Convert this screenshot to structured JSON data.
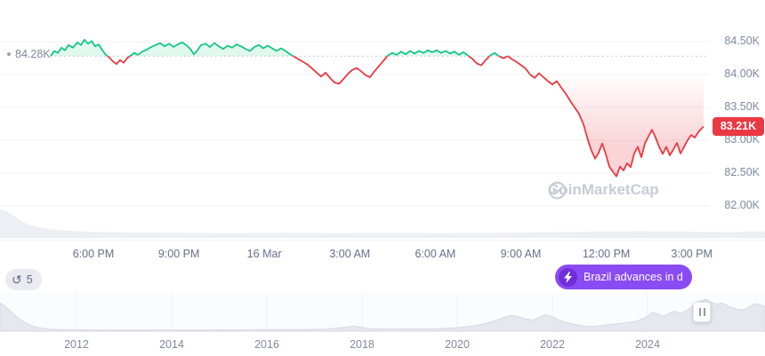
{
  "watermark": {
    "text": "CoinMarketCap"
  },
  "badges": {
    "history_count": "5",
    "news_text": "Brazil advances in d..."
  },
  "chart_data": {
    "type": "line",
    "title": "",
    "y_ticks": [
      "84.50K",
      "84.00K",
      "83.50K",
      "83.00K",
      "82.50K",
      "82.00K"
    ],
    "y_tick_values": [
      84.5,
      84.0,
      83.5,
      83.0,
      82.5,
      82.0
    ],
    "x_ticks": [
      "6:00 PM",
      "9:00 PM",
      "16 Mar",
      "3:00 AM",
      "6:00 AM",
      "9:00 AM",
      "12:00 PM",
      "3:00 PM"
    ],
    "open_value": 84.28,
    "open_label": "84.28K",
    "last_value": 83.21,
    "last_label": "83.21K",
    "ylim": [
      81.8,
      84.75
    ],
    "colors": {
      "up": "#16c784",
      "down": "#ea3943",
      "badge": "#ea3943",
      "grid": "#f0f2f5",
      "baseline": "#b8bfca"
    },
    "series": [
      {
        "name": "price",
        "points": [
          [
            57,
            84.28
          ],
          [
            61,
            84.36
          ],
          [
            65,
            84.33
          ],
          [
            69,
            84.41
          ],
          [
            73,
            84.37
          ],
          [
            77,
            84.45
          ],
          [
            82,
            84.41
          ],
          [
            87,
            84.49
          ],
          [
            91,
            84.45
          ],
          [
            95,
            84.53
          ],
          [
            99,
            84.47
          ],
          [
            103,
            84.51
          ],
          [
            107,
            84.43
          ],
          [
            111,
            84.46
          ],
          [
            115,
            84.37
          ],
          [
            119,
            84.3
          ],
          [
            123,
            84.26
          ],
          [
            127,
            84.2
          ],
          [
            131,
            84.16
          ],
          [
            135,
            84.22
          ],
          [
            139,
            84.18
          ],
          [
            143,
            84.25
          ],
          [
            147,
            84.29
          ],
          [
            151,
            84.33
          ],
          [
            155,
            84.3
          ],
          [
            160,
            84.35
          ],
          [
            165,
            84.38
          ],
          [
            170,
            84.42
          ],
          [
            175,
            84.45
          ],
          [
            180,
            84.48
          ],
          [
            185,
            84.43
          ],
          [
            190,
            84.47
          ],
          [
            195,
            84.42
          ],
          [
            200,
            84.46
          ],
          [
            205,
            84.49
          ],
          [
            210,
            84.44
          ],
          [
            214,
            84.39
          ],
          [
            218,
            84.31
          ],
          [
            222,
            84.37
          ],
          [
            226,
            84.45
          ],
          [
            231,
            84.47
          ],
          [
            236,
            84.42
          ],
          [
            241,
            84.48
          ],
          [
            246,
            84.43
          ],
          [
            251,
            84.39
          ],
          [
            256,
            84.44
          ],
          [
            261,
            84.41
          ],
          [
            266,
            84.46
          ],
          [
            271,
            84.43
          ],
          [
            276,
            84.39
          ],
          [
            281,
            84.36
          ],
          [
            286,
            84.42
          ],
          [
            291,
            84.45
          ],
          [
            296,
            84.4
          ],
          [
            301,
            84.44
          ],
          [
            306,
            84.4
          ],
          [
            311,
            84.36
          ],
          [
            316,
            84.4
          ],
          [
            321,
            84.36
          ],
          [
            326,
            84.31
          ],
          [
            331,
            84.27
          ],
          [
            336,
            84.23
          ],
          [
            341,
            84.19
          ],
          [
            346,
            84.15
          ],
          [
            351,
            84.09
          ],
          [
            356,
            84.03
          ],
          [
            361,
            83.97
          ],
          [
            366,
            84.03
          ],
          [
            371,
            83.95
          ],
          [
            376,
            83.88
          ],
          [
            381,
            83.86
          ],
          [
            386,
            83.93
          ],
          [
            391,
            84.01
          ],
          [
            396,
            84.07
          ],
          [
            401,
            84.1
          ],
          [
            406,
            84.05
          ],
          [
            411,
            83.99
          ],
          [
            416,
            83.96
          ],
          [
            421,
            84.05
          ],
          [
            426,
            84.13
          ],
          [
            431,
            84.21
          ],
          [
            436,
            84.29
          ],
          [
            441,
            84.33
          ],
          [
            446,
            84.3
          ],
          [
            451,
            84.35
          ],
          [
            456,
            84.31
          ],
          [
            461,
            84.36
          ],
          [
            466,
            84.32
          ],
          [
            471,
            84.36
          ],
          [
            476,
            84.33
          ],
          [
            481,
            84.37
          ],
          [
            486,
            84.34
          ],
          [
            491,
            84.37
          ],
          [
            496,
            84.33
          ],
          [
            501,
            84.36
          ],
          [
            506,
            84.32
          ],
          [
            511,
            84.35
          ],
          [
            516,
            84.3
          ],
          [
            521,
            84.34
          ],
          [
            526,
            84.29
          ],
          [
            531,
            84.24
          ],
          [
            536,
            84.17
          ],
          [
            541,
            84.14
          ],
          [
            546,
            84.22
          ],
          [
            551,
            84.29
          ],
          [
            556,
            84.33
          ],
          [
            561,
            84.28
          ],
          [
            566,
            84.25
          ],
          [
            571,
            84.28
          ],
          [
            576,
            84.23
          ],
          [
            581,
            84.19
          ],
          [
            586,
            84.14
          ],
          [
            591,
            84.09
          ],
          [
            596,
            84.0
          ],
          [
            601,
            83.95
          ],
          [
            606,
            84.02
          ],
          [
            611,
            83.96
          ],
          [
            616,
            83.9
          ],
          [
            621,
            83.85
          ],
          [
            626,
            83.9
          ],
          [
            631,
            83.8
          ],
          [
            636,
            83.71
          ],
          [
            641,
            83.6
          ],
          [
            646,
            83.5
          ],
          [
            651,
            83.4
          ],
          [
            656,
            83.24
          ],
          [
            661,
            83.0
          ],
          [
            665,
            82.84
          ],
          [
            669,
            82.72
          ],
          [
            673,
            82.81
          ],
          [
            677,
            82.95
          ],
          [
            681,
            82.79
          ],
          [
            685,
            82.6
          ],
          [
            689,
            82.52
          ],
          [
            693,
            82.45
          ],
          [
            697,
            82.6
          ],
          [
            701,
            82.54
          ],
          [
            705,
            82.65
          ],
          [
            709,
            82.59
          ],
          [
            713,
            82.8
          ],
          [
            717,
            82.9
          ],
          [
            721,
            82.74
          ],
          [
            725,
            82.95
          ],
          [
            729,
            83.06
          ],
          [
            733,
            83.16
          ],
          [
            737,
            83.04
          ],
          [
            741,
            82.9
          ],
          [
            745,
            82.79
          ],
          [
            749,
            82.9
          ],
          [
            753,
            82.77
          ],
          [
            757,
            82.86
          ],
          [
            761,
            82.96
          ],
          [
            765,
            82.8
          ],
          [
            769,
            82.9
          ],
          [
            773,
            83.0
          ],
          [
            777,
            83.08
          ],
          [
            781,
            83.04
          ],
          [
            786,
            83.14
          ],
          [
            791,
            83.21
          ]
        ]
      }
    ],
    "backdrop": [
      [
        0,
        0.95
      ],
      [
        8,
        0.88
      ],
      [
        16,
        0.72
      ],
      [
        24,
        0.55
      ],
      [
        34,
        0.42
      ],
      [
        46,
        0.33
      ],
      [
        60,
        0.27
      ],
      [
        80,
        0.23
      ],
      [
        110,
        0.2
      ],
      [
        150,
        0.18
      ],
      [
        200,
        0.17
      ],
      [
        260,
        0.16
      ],
      [
        320,
        0.17
      ],
      [
        380,
        0.16
      ],
      [
        440,
        0.17
      ],
      [
        500,
        0.16
      ],
      [
        560,
        0.17
      ],
      [
        620,
        0.19
      ],
      [
        670,
        0.21
      ],
      [
        720,
        0.22
      ],
      [
        770,
        0.21
      ],
      [
        820,
        0.2
      ],
      [
        860,
        0.22
      ]
    ],
    "navigator": {
      "x_ticks": [
        "2012",
        "2014",
        "2016",
        "2018",
        "2020",
        "2022",
        "2024"
      ],
      "points": [
        [
          0,
          0.88
        ],
        [
          6,
          0.78
        ],
        [
          12,
          0.62
        ],
        [
          18,
          0.46
        ],
        [
          26,
          0.3
        ],
        [
          34,
          0.18
        ],
        [
          44,
          0.1
        ],
        [
          56,
          0.06
        ],
        [
          72,
          0.045
        ],
        [
          100,
          0.035
        ],
        [
          140,
          0.03
        ],
        [
          180,
          0.035
        ],
        [
          220,
          0.03
        ],
        [
          260,
          0.04
        ],
        [
          300,
          0.045
        ],
        [
          340,
          0.05
        ],
        [
          365,
          0.06
        ],
        [
          385,
          0.11
        ],
        [
          398,
          0.16
        ],
        [
          408,
          0.11
        ],
        [
          420,
          0.07
        ],
        [
          440,
          0.06
        ],
        [
          460,
          0.07
        ],
        [
          480,
          0.075
        ],
        [
          495,
          0.08
        ],
        [
          510,
          0.1
        ],
        [
          522,
          0.13
        ],
        [
          534,
          0.17
        ],
        [
          546,
          0.24
        ],
        [
          556,
          0.32
        ],
        [
          566,
          0.42
        ],
        [
          575,
          0.5
        ],
        [
          583,
          0.45
        ],
        [
          590,
          0.39
        ],
        [
          598,
          0.34
        ],
        [
          606,
          0.42
        ],
        [
          613,
          0.52
        ],
        [
          620,
          0.46
        ],
        [
          628,
          0.35
        ],
        [
          636,
          0.27
        ],
        [
          646,
          0.21
        ],
        [
          656,
          0.16
        ],
        [
          666,
          0.14
        ],
        [
          676,
          0.17
        ],
        [
          686,
          0.21
        ],
        [
          696,
          0.24
        ],
        [
          706,
          0.27
        ],
        [
          716,
          0.31
        ],
        [
          726,
          0.44
        ],
        [
          734,
          0.58
        ],
        [
          740,
          0.53
        ],
        [
          746,
          0.47
        ],
        [
          752,
          0.55
        ],
        [
          758,
          0.63
        ],
        [
          764,
          0.56
        ],
        [
          770,
          0.62
        ],
        [
          776,
          0.72
        ],
        [
          782,
          0.84
        ],
        [
          788,
          0.95
        ],
        [
          794,
          1.0
        ],
        [
          800,
          0.9
        ],
        [
          806,
          0.84
        ],
        [
          812,
          0.88
        ],
        [
          818,
          0.79
        ],
        [
          824,
          0.72
        ],
        [
          830,
          0.68
        ],
        [
          836,
          0.66
        ],
        [
          842,
          0.76
        ],
        [
          848,
          0.86
        ],
        [
          854,
          0.82
        ],
        [
          860,
          0.78
        ]
      ]
    }
  }
}
